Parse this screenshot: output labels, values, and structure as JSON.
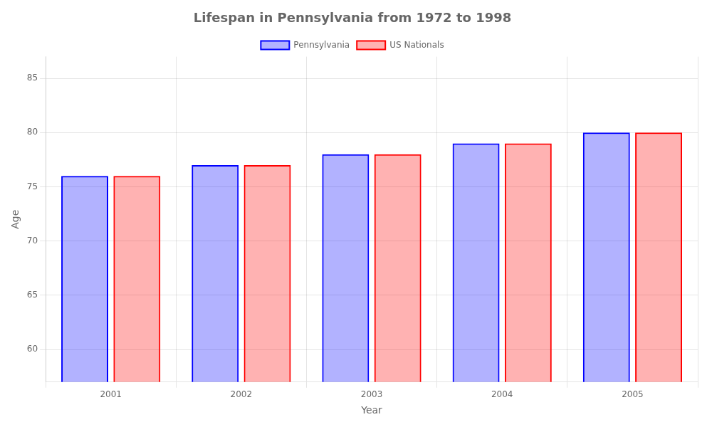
{
  "chart_data": {
    "type": "bar",
    "title": "Lifespan in Pennsylvania from 1972 to 1998",
    "xlabel": "Year",
    "ylabel": "Age",
    "categories": [
      "2001",
      "2002",
      "2003",
      "2004",
      "2005"
    ],
    "series": [
      {
        "name": "Pennsylvania",
        "color": "#0000ff",
        "values": [
          76,
          77,
          78,
          79,
          80
        ]
      },
      {
        "name": "US Nationals",
        "color": "#ff0000",
        "values": [
          76,
          77,
          78,
          79,
          80
        ]
      }
    ],
    "ylim": [
      57,
      87
    ],
    "yticks": [
      60,
      65,
      70,
      75,
      80,
      85
    ],
    "grid": true,
    "legend": "top"
  }
}
